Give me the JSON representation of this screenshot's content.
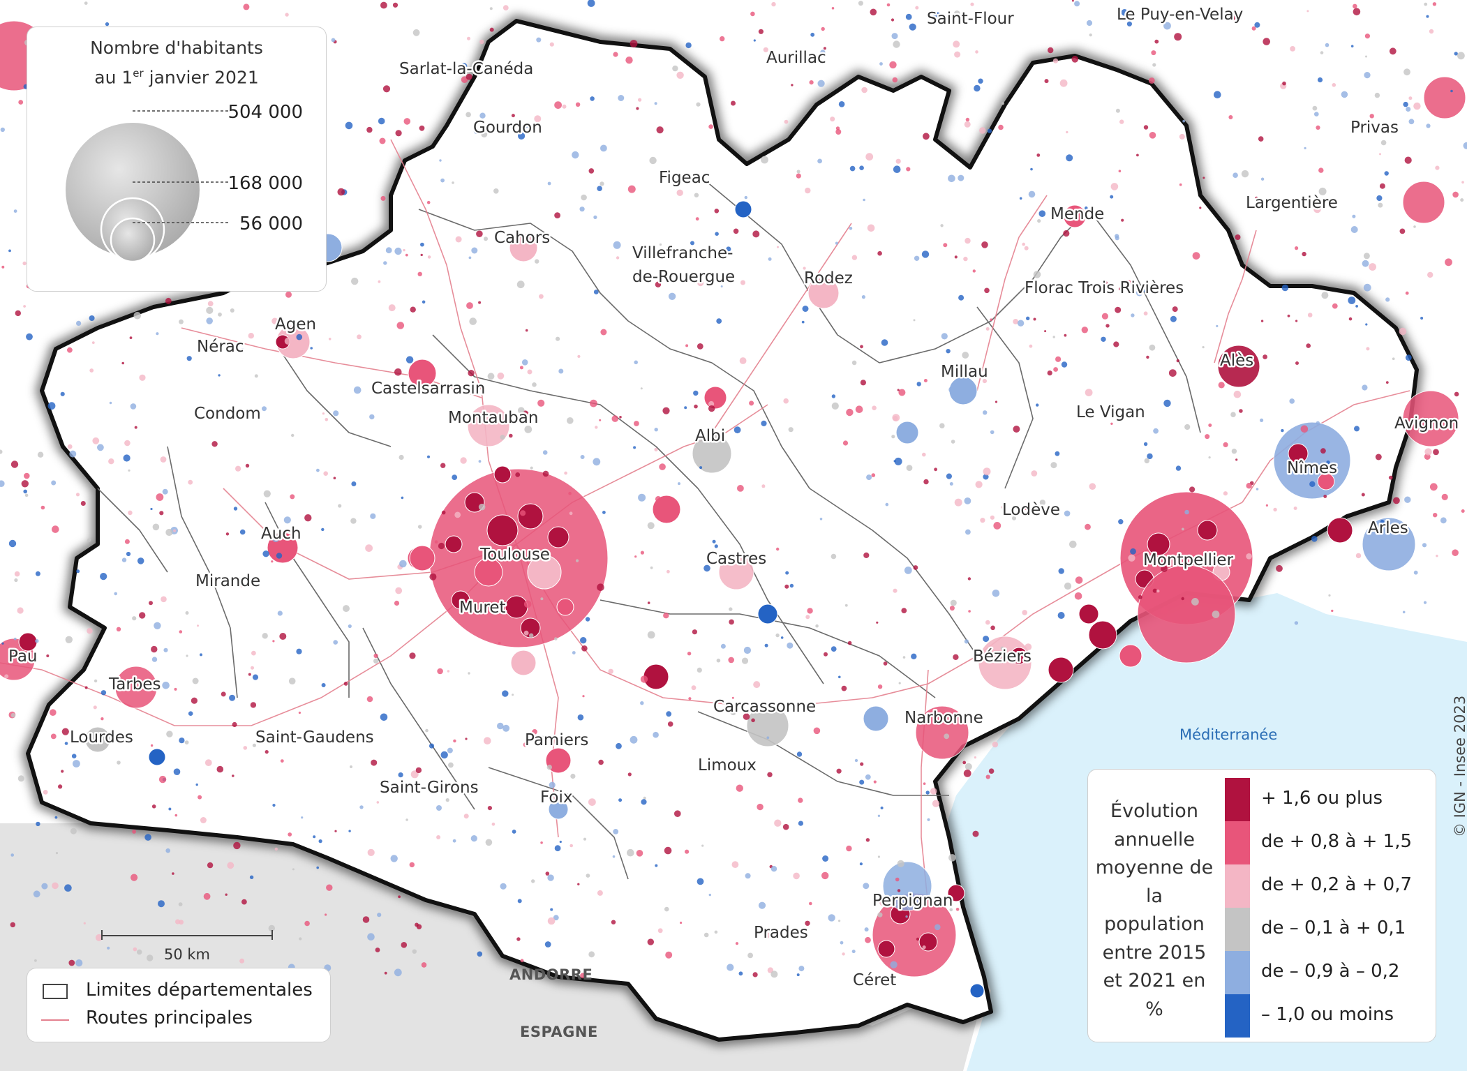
{
  "size_legend": {
    "title_line1": "Nombre d'habitants",
    "title_line2_prefix": "au 1",
    "title_line2_sup": "er",
    "title_line2_suffix": " janvier 2021",
    "values": [
      "504 000",
      "168 000",
      "56 000"
    ]
  },
  "color_legend": {
    "title": "Évolution annuelle moyenne de la population entre 2015 et 2021 en %",
    "classes": [
      {
        "label": "+ 1,6 ou plus",
        "color": "#b0123f"
      },
      {
        "label": "de + 0,8 à + 1,5",
        "color": "#e8557a"
      },
      {
        "label": "de + 0,2 à + 0,7",
        "color": "#f4b6c5"
      },
      {
        "label": "de – 0,1 à + 0,1",
        "color": "#c4c4c4"
      },
      {
        "label": "de – 0,9 à – 0,2",
        "color": "#8eaee0"
      },
      {
        "label": "– 1,0 ou moins",
        "color": "#2463c4"
      }
    ]
  },
  "line_legend": {
    "departments": "Limites départementales",
    "roads": "Routes principales"
  },
  "scale_bar": {
    "label": "50 km"
  },
  "copyright": "© IGN - Insee 2023",
  "countries": {
    "andorre": "ANDORRE",
    "espagne": "ESPAGNE"
  },
  "sea": "Méditerranée",
  "cities": {
    "saint_flour": "Saint-Flour",
    "le_puy": "Le Puy-en-Velay",
    "sarlat": "Sarlat-la-Canéda",
    "aurillac": "Aurillac",
    "gourdon": "Gourdon",
    "privas": "Privas",
    "figeac": "Figeac",
    "largentiere": "Largentière",
    "mende": "Mende",
    "cahors": "Cahors",
    "villefranche_1": "Villefranche-",
    "villefranche_2": "de-Rouergue",
    "rodez": "Rodez",
    "florac": "Florac Trois Rivières",
    "agen": "Agen",
    "nerac": "Nérac",
    "ales": "Alès",
    "millau": "Millau",
    "castelsarrasin": "Castelsarrasin",
    "condom": "Condom",
    "le_vigan": "Le Vigan",
    "avignon": "Avignon",
    "montauban": "Montauban",
    "albi": "Albi",
    "nimes": "Nîmes",
    "lodeve": "Lodève",
    "arles": "Arles",
    "auch": "Auch",
    "toulouse": "Toulouse",
    "castres": "Castres",
    "montpellier": "Montpellier",
    "mirande": "Mirande",
    "muret": "Muret",
    "pau": "Pau",
    "beziers": "Béziers",
    "tarbes": "Tarbes",
    "carcassonne": "Carcassonne",
    "narbonne": "Narbonne",
    "lourdes": "Lourdes",
    "saint_gaudens": "Saint-Gaudens",
    "pamiers": "Pamiers",
    "limoux": "Limoux",
    "saint_girons": "Saint-Girons",
    "foix": "Foix",
    "perpignan": "Perpignan",
    "prades": "Prades",
    "ceret": "Céret"
  }
}
